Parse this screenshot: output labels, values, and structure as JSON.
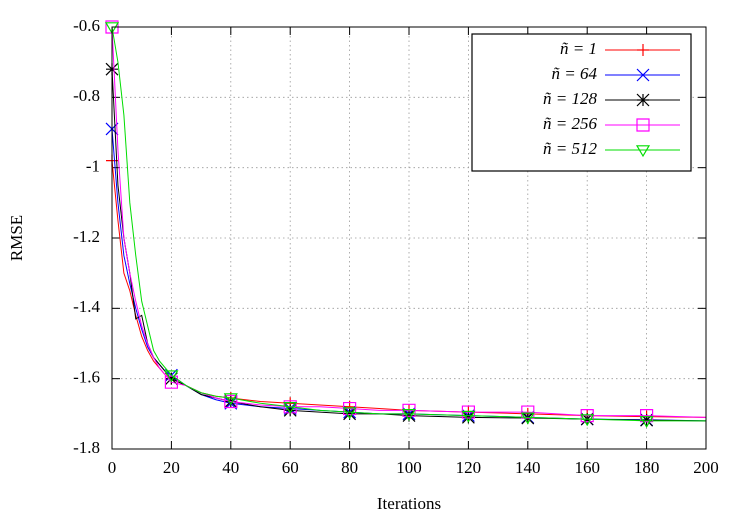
{
  "chart_data": {
    "type": "line",
    "x_label": "Iterations",
    "y_label": "RMSE",
    "x": [
      0,
      2,
      4,
      6,
      8,
      10,
      12,
      14,
      16,
      18,
      20,
      25,
      30,
      35,
      40,
      50,
      60,
      70,
      80,
      90,
      100,
      120,
      140,
      160,
      180,
      200
    ],
    "series": [
      {
        "name": "ñ = 1",
        "color": "#ff0000",
        "marker": "plus",
        "values": [
          -0.98,
          -1.15,
          -1.3,
          -1.35,
          -1.42,
          -1.48,
          -1.52,
          -1.55,
          -1.57,
          -1.59,
          -1.6,
          -1.62,
          -1.64,
          -1.65,
          -1.655,
          -1.665,
          -1.67,
          -1.675,
          -1.68,
          -1.685,
          -1.69,
          -1.695,
          -1.7,
          -1.705,
          -1.708,
          -1.71
        ]
      },
      {
        "name": "ñ = 64",
        "color": "#0000ff",
        "marker": "cross",
        "values": [
          -0.89,
          -1.1,
          -1.25,
          -1.33,
          -1.4,
          -1.46,
          -1.51,
          -1.54,
          -1.56,
          -1.58,
          -1.59,
          -1.62,
          -1.645,
          -1.66,
          -1.67,
          -1.68,
          -1.685,
          -1.69,
          -1.695,
          -1.7,
          -1.7,
          -1.705,
          -1.71,
          -1.715,
          -1.717,
          -1.72
        ]
      },
      {
        "name": "ñ = 128",
        "color": "#000000",
        "marker": "star",
        "values": [
          -0.72,
          -1.05,
          -1.2,
          -1.3,
          -1.43,
          -1.42,
          -1.5,
          -1.54,
          -1.56,
          -1.58,
          -1.6,
          -1.62,
          -1.645,
          -1.655,
          -1.665,
          -1.68,
          -1.69,
          -1.695,
          -1.7,
          -1.7,
          -1.705,
          -1.71,
          -1.712,
          -1.715,
          -1.718,
          -1.72
        ]
      },
      {
        "name": "ñ = 256",
        "color": "#ff00ff",
        "marker": "square",
        "values": [
          -0.6,
          -0.95,
          -1.2,
          -1.3,
          -1.38,
          -1.45,
          -1.5,
          -1.54,
          -1.57,
          -1.59,
          -1.61,
          -1.62,
          -1.64,
          -1.655,
          -1.665,
          -1.675,
          -1.68,
          -1.68,
          -1.685,
          -1.69,
          -1.69,
          -1.695,
          -1.695,
          -1.705,
          -1.705,
          -1.71
        ]
      },
      {
        "name": "ñ = 512",
        "color": "#00dd00",
        "marker": "triangle-down",
        "values": [
          -0.6,
          -0.7,
          -0.85,
          -1.1,
          -1.25,
          -1.38,
          -1.45,
          -1.52,
          -1.55,
          -1.57,
          -1.59,
          -1.62,
          -1.64,
          -1.65,
          -1.655,
          -1.67,
          -1.68,
          -1.69,
          -1.695,
          -1.7,
          -1.7,
          -1.705,
          -1.71,
          -1.715,
          -1.72,
          -1.72
        ]
      }
    ],
    "xlim": [
      0,
      200
    ],
    "xticks": [
      0,
      20,
      40,
      60,
      80,
      100,
      120,
      140,
      160,
      180,
      200
    ],
    "ylim": [
      -1.8,
      -0.6
    ],
    "yticks": [
      -1.8,
      -1.6,
      -1.4,
      -1.2,
      -1,
      -0.8,
      -0.6
    ],
    "grid": true,
    "legend": "top-right"
  }
}
